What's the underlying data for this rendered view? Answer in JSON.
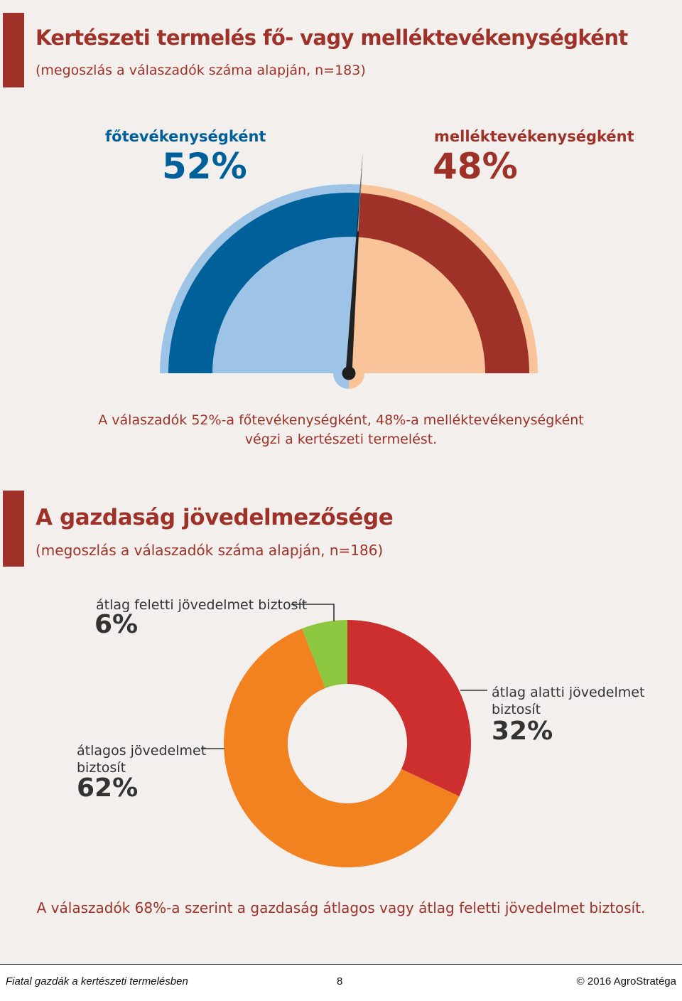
{
  "section1": {
    "title": "Kertészeti termelés fő- vagy melléktevékenységként",
    "subtitle": "(megoszlás a válaszadók száma alapján, n=183)",
    "caption_line1": "A válaszadók 52%-a főtevékenységként, 48%-a melléktevékenységként",
    "caption_line2": "végzi a kertészeti termelést."
  },
  "section2": {
    "title": "A gazdaság jövedelmezősége",
    "subtitle": "(megoszlás a válaszadók száma alapján, n=186)",
    "caption": "A válaszadók 68%-a szerint a gazdaság átlagos vagy átlag feletti jövedelmet biztosít."
  },
  "colors": {
    "accent": "#9e3128",
    "main_dark": "#00609a",
    "main_light": "#9dc3e6",
    "side_dark": "#9e3128",
    "side_light": "#f9c499",
    "above": "#8dc63f",
    "below": "#cd2e2e",
    "average": "#f28120"
  },
  "chart_data": [
    {
      "type": "pie",
      "style": "gauge",
      "slices": [
        {
          "label": "főtevékenységként",
          "value": 52,
          "value_label": "52%"
        },
        {
          "label": "melléktevékenységként",
          "value": 48,
          "value_label": "48%"
        }
      ]
    },
    {
      "type": "pie",
      "style": "donut",
      "slices": [
        {
          "label_line1": "átlag alatti jövedelmet",
          "label_line2": "biztosít",
          "value": 32,
          "value_label": "32%"
        },
        {
          "label_line1": "átlagos jövedelmet",
          "label_line2": "biztosít",
          "value": 62,
          "value_label": "62%"
        },
        {
          "label_line1": "átlag feletti jövedelmet biztosít",
          "label_line2": "",
          "value": 6,
          "value_label": "6%"
        }
      ]
    }
  ],
  "footer": {
    "left": "Fiatal gazdák a kertészeti termelésben",
    "page": "8",
    "right": "© 2016 AgroStratéga"
  }
}
